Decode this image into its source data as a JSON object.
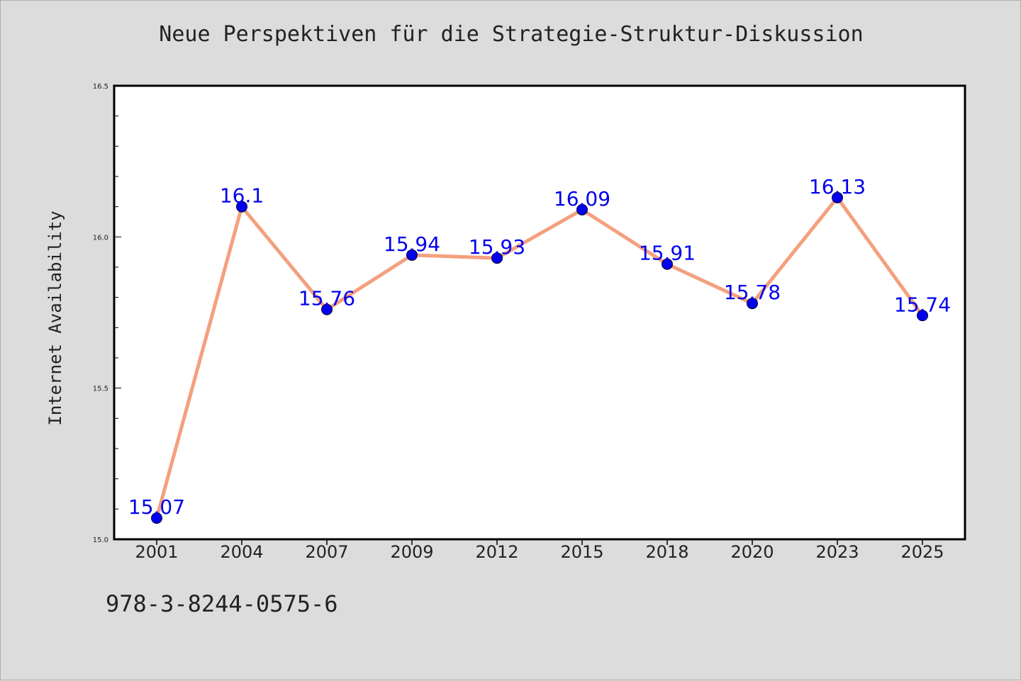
{
  "chart_data": {
    "type": "line",
    "title": "Neue Perspektiven für die Strategie-Struktur-Diskussion",
    "ylabel": "Internet Availability",
    "xlabel": "",
    "categories": [
      "2001",
      "2004",
      "2007",
      "2009",
      "2012",
      "2015",
      "2018",
      "2020",
      "2023",
      "2025"
    ],
    "series": [
      {
        "values": [
          15.07,
          16.1,
          15.76,
          15.94,
          15.93,
          16.09,
          15.91,
          15.78,
          16.13,
          15.74
        ]
      }
    ],
    "data_labels": [
      "15.07",
      "16.1",
      "15.76",
      "15.94",
      "15.93",
      "16.09",
      "15.91",
      "15.78",
      "16.13",
      "15.74"
    ],
    "ylim": [
      15.0,
      16.5
    ],
    "yticks": [
      "15.0",
      "15.5",
      "16.0",
      "16.5"
    ],
    "grid": false,
    "legend": "none",
    "colors": {
      "line": "#f4a07e",
      "marker": "#0000ee",
      "label": "#0000ee"
    }
  },
  "footer": {
    "isbn": "978-3-8244-0575-6"
  }
}
